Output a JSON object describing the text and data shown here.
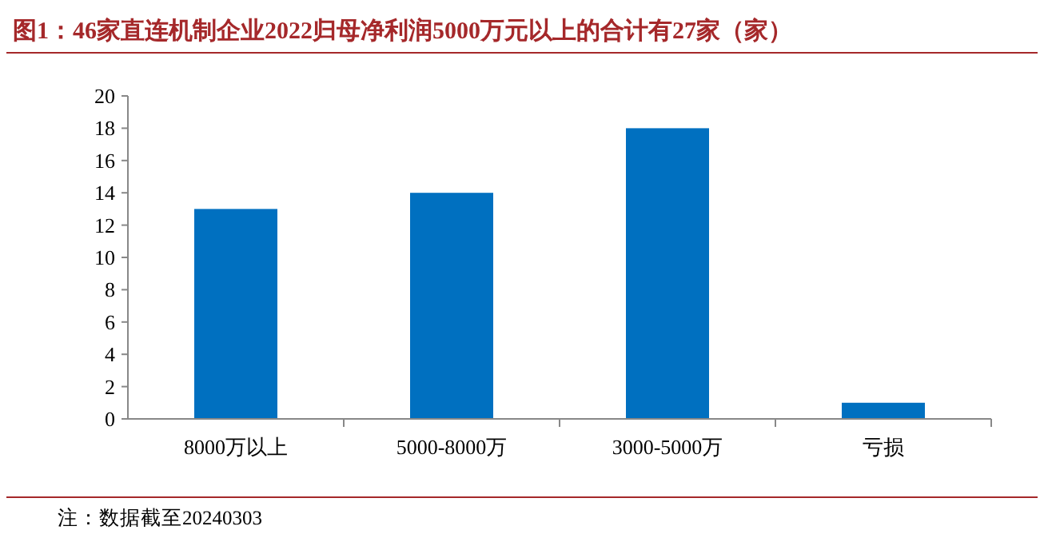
{
  "chart_data": {
    "type": "bar",
    "title": "图1：46家直连机制企业2022归母净利润5000万元以上的合计有27家（家）",
    "categories": [
      "8000万以上",
      "5000-8000万",
      "3000-5000万",
      "亏损"
    ],
    "values": [
      13,
      14,
      18,
      1
    ],
    "color": "#0070c0",
    "ylim": [
      0,
      20
    ],
    "yticks": [
      0,
      2,
      4,
      6,
      8,
      10,
      12,
      14,
      16,
      18,
      20
    ],
    "annotations": [
      "注：数据截至20240303"
    ]
  }
}
